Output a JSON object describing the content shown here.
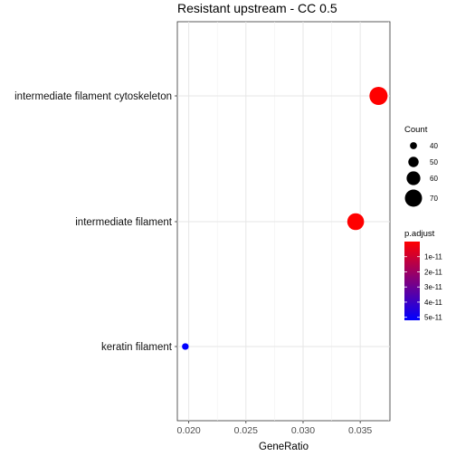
{
  "chart_data": {
    "type": "scatter",
    "title": "Resistant upstream - CC 0.5",
    "xlabel": "GeneRatio",
    "ylabel": "",
    "xlim": [
      0.019,
      0.0376
    ],
    "xticks": [
      0.02,
      0.025,
      0.03,
      0.035
    ],
    "xtick_labels": [
      "0.020",
      "0.025",
      "0.030",
      "0.035"
    ],
    "categories": [
      "intermediate filament cytoskeleton",
      "intermediate filament",
      "keratin filament"
    ],
    "points": [
      {
        "category": "intermediate filament cytoskeleton",
        "x": 0.0366,
        "count": 73,
        "p_adjust": 1e-13
      },
      {
        "category": "intermediate filament",
        "x": 0.0346,
        "count": 69,
        "p_adjust": 1e-13
      },
      {
        "category": "keratin filament",
        "x": 0.0197,
        "count": 39,
        "p_adjust": 5.2e-11
      }
    ],
    "legend_size": {
      "title": "Count",
      "values": [
        40,
        50,
        60,
        70
      ],
      "labels": [
        "40",
        "50",
        "60",
        "70"
      ]
    },
    "legend_color": {
      "title": "p.adjust",
      "range": [
        0,
        5.2e-11
      ],
      "ticks": [
        1e-11,
        2e-11,
        3e-11,
        4e-11,
        5e-11
      ],
      "labels": [
        "1e-11",
        "2e-11",
        "3e-11",
        "4e-11",
        "5e-11"
      ],
      "low_color": "#ff0000",
      "high_color": "#0000ff"
    },
    "grid": true,
    "legend_position": "right"
  }
}
